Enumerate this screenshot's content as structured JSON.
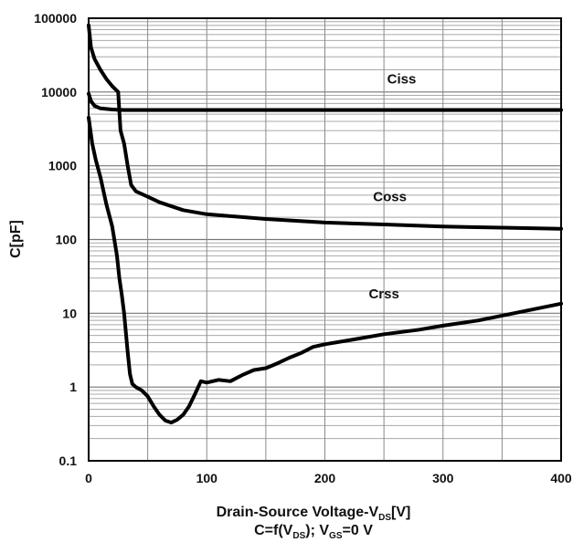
{
  "chart_data": {
    "type": "line",
    "title": "",
    "xlabel": {
      "main": "Drain-Source Voltage-V",
      "sub": "DS",
      "unit": "[V]"
    },
    "caption": {
      "p1": "C=f(V",
      "s1": "DS",
      "p2": "); V",
      "s2": "GS",
      "p3": "=0 V"
    },
    "ylabel": "C[pF]",
    "x_scale": "linear",
    "y_scale": "log",
    "xlim": [
      0,
      400
    ],
    "ylim": [
      0.1,
      100000
    ],
    "grid": true,
    "x_ticks": [
      {
        "value": 0,
        "label": "0"
      },
      {
        "value": 100,
        "label": "100"
      },
      {
        "value": 200,
        "label": "200"
      },
      {
        "value": 300,
        "label": "300"
      },
      {
        "value": 400,
        "label": "400"
      }
    ],
    "y_ticks": [
      {
        "value": 0.1,
        "label": "0.1"
      },
      {
        "value": 1,
        "label": "1"
      },
      {
        "value": 10,
        "label": "10"
      },
      {
        "value": 100,
        "label": "100"
      },
      {
        "value": 1000,
        "label": "1000"
      },
      {
        "value": 10000,
        "label": "10000"
      },
      {
        "value": 100000,
        "label": "100000"
      }
    ],
    "series": [
      {
        "name": "Ciss",
        "x": [
          0,
          2,
          5,
          10,
          20,
          30,
          50,
          100,
          200,
          300,
          400
        ],
        "y": [
          9500,
          7500,
          6500,
          6000,
          5800,
          5700,
          5700,
          5700,
          5700,
          5700,
          5700
        ]
      },
      {
        "name": "Coss",
        "x": [
          0,
          2,
          5,
          10,
          15,
          20,
          25,
          27,
          30,
          33,
          36,
          40,
          50,
          60,
          80,
          100,
          150,
          200,
          250,
          300,
          350,
          400
        ],
        "y": [
          80000,
          40000,
          28000,
          20000,
          15000,
          12000,
          10000,
          3000,
          2000,
          1000,
          550,
          450,
          380,
          320,
          250,
          220,
          190,
          170,
          160,
          150,
          145,
          140
        ]
      },
      {
        "name": "Crss",
        "x": [
          0,
          3,
          6,
          10,
          15,
          20,
          24,
          26,
          28,
          30,
          33,
          35,
          37,
          40,
          45,
          50,
          55,
          60,
          65,
          70,
          75,
          80,
          85,
          90,
          95,
          100,
          110,
          120,
          130,
          140,
          150,
          160,
          170,
          180,
          190,
          200,
          220,
          250,
          280,
          300,
          330,
          360,
          400
        ],
        "y": [
          4500,
          2000,
          1200,
          700,
          300,
          150,
          60,
          30,
          18,
          10,
          3,
          1.5,
          1.1,
          1.0,
          0.9,
          0.75,
          0.55,
          0.42,
          0.35,
          0.33,
          0.36,
          0.42,
          0.55,
          0.8,
          1.2,
          1.15,
          1.25,
          1.2,
          1.45,
          1.7,
          1.8,
          2.1,
          2.5,
          2.9,
          3.5,
          3.8,
          4.3,
          5.2,
          6.0,
          6.8,
          8.0,
          10.0,
          13.5
        ]
      }
    ]
  }
}
